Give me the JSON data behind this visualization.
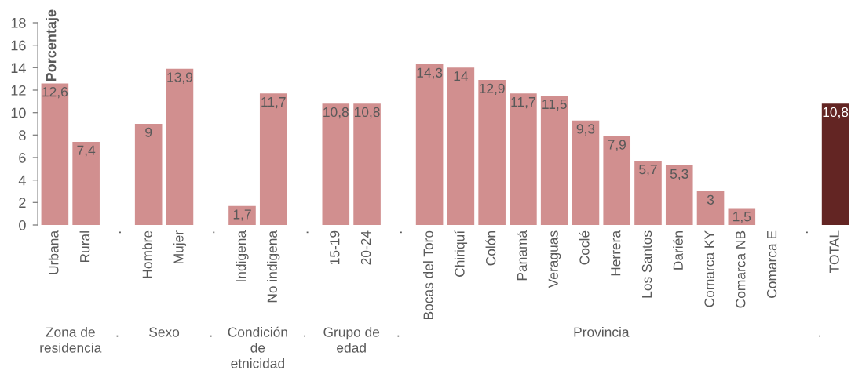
{
  "chart_data": {
    "type": "bar",
    "ylabel": "Porcentaje",
    "categories": [
      "Urbana",
      "Rural",
      ".",
      "Hombre",
      "Mujer",
      ".",
      "Indigena",
      "No indigena",
      ".",
      "15-19",
      "20-24",
      ".",
      "Bocas del Toro",
      "Chiriquí",
      "Colón",
      "Panamá",
      "Veraguas",
      "Coclé",
      "Herrera",
      "Los Santos",
      "Darién",
      "Comarca KY",
      "Comarca NB",
      "Comarca E",
      ".",
      "TOTAL"
    ],
    "values": [
      12.6,
      7.4,
      null,
      9,
      13.9,
      null,
      1.7,
      11.7,
      null,
      10.8,
      10.8,
      null,
      14.3,
      14,
      12.9,
      11.7,
      11.5,
      9.3,
      7.9,
      5.7,
      5.3,
      3,
      1.5,
      null,
      null,
      10.8
    ],
    "colors": [
      "#d18f8f",
      "#d18f8f",
      null,
      "#d18f8f",
      "#d18f8f",
      null,
      "#d18f8f",
      "#d18f8f",
      null,
      "#d18f8f",
      "#d18f8f",
      null,
      "#d18f8f",
      "#d18f8f",
      "#d18f8f",
      "#d18f8f",
      "#d18f8f",
      "#d18f8f",
      "#d18f8f",
      "#d18f8f",
      "#d18f8f",
      "#d18f8f",
      "#d18f8f",
      null,
      null,
      "#632523"
    ],
    "value_labels": [
      "12,6",
      "7,4",
      null,
      "9",
      "13,9",
      null,
      "1,7",
      "11,7",
      null,
      "10,8",
      "10,8",
      null,
      "14,3",
      "14",
      "12,9",
      "11,7",
      "11,5",
      "9,3",
      "7,9",
      "5,7",
      "5,3",
      "3",
      "1,5",
      null,
      null,
      "10,8"
    ],
    "ylim": [
      0,
      18
    ],
    "yticks": [
      0,
      2,
      4,
      6,
      8,
      10,
      12,
      14,
      16,
      18
    ],
    "annotations": [
      "Zona de\nresidencia",
      ".",
      "Sexo",
      ".",
      "Condición\nde\netnicidad",
      ".",
      "Grupo de\nedad",
      ".",
      "Provincia",
      "."
    ]
  }
}
